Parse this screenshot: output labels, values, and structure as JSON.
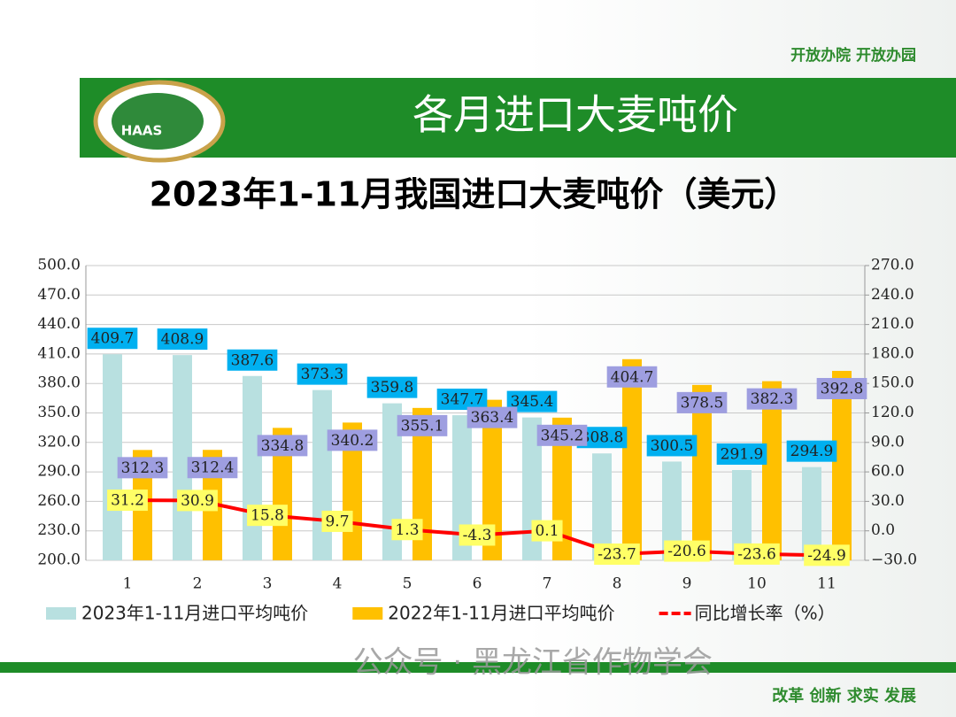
{
  "header": {
    "slogan": "开放办院  开放办园",
    "title": "各月进口大麦吨价",
    "logo_text": "HAAS"
  },
  "chart_data": {
    "type": "bar",
    "title": "2023年1-11月我国进口大麦吨价（美元）",
    "categories": [
      "1",
      "2",
      "3",
      "4",
      "5",
      "6",
      "7",
      "8",
      "9",
      "10",
      "11"
    ],
    "series": [
      {
        "name": "2023年1-11月进口平均吨价",
        "type": "bar",
        "color": "#b8e0e0",
        "label_color": "#00b0f0",
        "values": [
          409.7,
          408.9,
          387.6,
          373.3,
          359.8,
          347.7,
          345.4,
          308.8,
          300.5,
          291.9,
          294.9
        ]
      },
      {
        "name": "2022年1-11月进口平均吨价",
        "type": "bar",
        "color": "#ffc000",
        "label_color": "#9e9ee0",
        "values": [
          312.3,
          312.4,
          334.8,
          340.2,
          355.1,
          363.4,
          345.2,
          404.7,
          378.5,
          382.3,
          392.8
        ]
      },
      {
        "name": "同比增长率（%）",
        "type": "line",
        "axis": "y2",
        "color": "#ff0000",
        "label_color": "#ffff66",
        "values": [
          31.2,
          30.9,
          15.8,
          9.7,
          1.3,
          -4.3,
          0.1,
          -23.7,
          -20.6,
          -23.6,
          -24.9
        ]
      }
    ],
    "ylim": [
      200,
      500
    ],
    "yticks": [
      {
        "value": 200,
        "label": "200.0"
      },
      {
        "value": 230,
        "label": "230.0"
      },
      {
        "value": 260,
        "label": "260.0"
      },
      {
        "value": 290,
        "label": "290.0"
      },
      {
        "value": 320,
        "label": "320.0"
      },
      {
        "value": 350,
        "label": "350.0"
      },
      {
        "value": 380,
        "label": "380.0"
      },
      {
        "value": 410,
        "label": "410.0"
      },
      {
        "value": 440,
        "label": "440.0"
      },
      {
        "value": 470,
        "label": "470.0"
      },
      {
        "value": 500,
        "label": "500.0"
      }
    ],
    "y2lim": [
      -30,
      270
    ],
    "y2ticks": [
      {
        "value": -30,
        "label": "−30.0"
      },
      {
        "value": 0,
        "label": "0.0"
      },
      {
        "value": 30,
        "label": "30.0"
      },
      {
        "value": 60,
        "label": "60.0"
      },
      {
        "value": 90,
        "label": "90.0"
      },
      {
        "value": 120,
        "label": "120.0"
      },
      {
        "value": 150,
        "label": "150.0"
      },
      {
        "value": 180,
        "label": "180.0"
      },
      {
        "value": 210,
        "label": "210.0"
      },
      {
        "value": 240,
        "label": "240.0"
      },
      {
        "value": 270,
        "label": "270.0"
      }
    ],
    "grid": true
  },
  "footer": {
    "watermark": "公众号 · 黑龙江省作物学会",
    "motto": "改革 创新 求实  发展"
  }
}
